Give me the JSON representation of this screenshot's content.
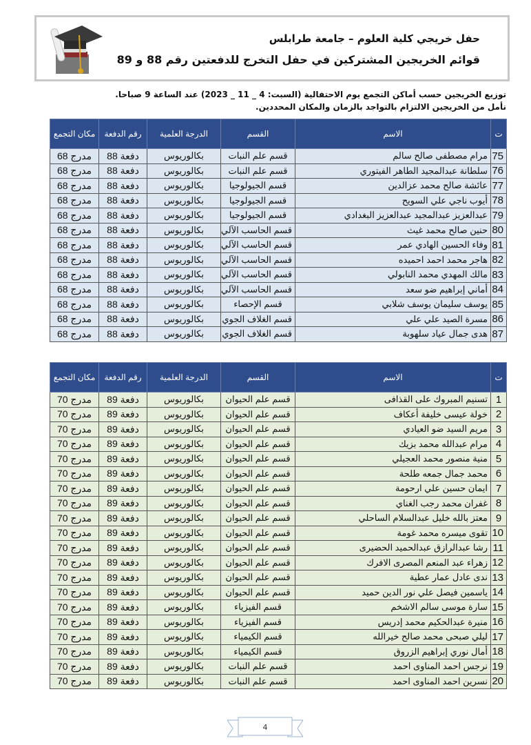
{
  "header": {
    "title": "حفل خريجي كلية العلوم – جامعة طرابلس",
    "subtitle": "قوائم الخريجين المشتركين في حفل التخرج للدفعتين رقم 88 و 89",
    "logo_icon": "graduation-cap-icon"
  },
  "notes": [
    "توزيع الخريجين حسب أماكن التجمع يوم الاحتفالية (السبت: 4 _ 11 _ 2023) عند الساعة 9 صباحا.",
    "نأمل من الخريجين الالتزام بالتواجد بالزمان والمكان المحددين."
  ],
  "columns": [
    "ت",
    "الاسم",
    "القسم",
    "الدرجة العلمية",
    "رقم الدفعة",
    "مكان التجمع"
  ],
  "colors": {
    "header": "#2f4c8c",
    "table1_row": "#dbe6f0",
    "table2_row": "#e5eedb"
  },
  "table1": [
    [
      "75",
      "مرام مصطفى صالح سالم",
      "قسم علم النبات",
      "بكالوريوس",
      "دفعة 88",
      "مدرج 68"
    ],
    [
      "76",
      "سلطانة عبدالمجيد الطاهر الفيتوري",
      "قسم علم النبات",
      "بكالوريوس",
      "دفعة 88",
      "مدرج 68"
    ],
    [
      "77",
      "عائشة صالح محمد عزالدين",
      "قسم الجيولوجيا",
      "بكالوريوس",
      "دفعة 88",
      "مدرج 68"
    ],
    [
      "78",
      "أيوب ناجي علي السويح",
      "قسم الجيولوجيا",
      "بكالوريوس",
      "دفعة 88",
      "مدرج 68"
    ],
    [
      "79",
      "عبدالعزيز عبدالمجيد عبدالعزيز البغدادي",
      "قسم الجيولوجيا",
      "بكالوريوس",
      "دفعة 88",
      "مدرج 68"
    ],
    [
      "80",
      "حنين صالح محمد غيث",
      "قسم الحاسب الآلي",
      "بكالوريوس",
      "دفعة 88",
      "مدرج 68"
    ],
    [
      "81",
      "وفاء الحسين الهادي عمر",
      "قسم الحاسب الآلي",
      "بكالوريوس",
      "دفعة 88",
      "مدرج 68"
    ],
    [
      "82",
      "هاجر محمد احمد احميده",
      "قسم الحاسب الآلي",
      "بكالوريوس",
      "دفعة 88",
      "مدرج 68"
    ],
    [
      "83",
      "مالك المهدي محمد النابولي",
      "قسم الحاسب الآلي",
      "بكالوريوس",
      "دفعة 88",
      "مدرج 68"
    ],
    [
      "84",
      "أماني إبراهيم ضو سعد",
      "قسم الحاسب الآلي",
      "بكالوريوس",
      "دفعة 88",
      "مدرج 68"
    ],
    [
      "85",
      "يوسف سليمان يوسف شلابي",
      "قسم الإحصاء",
      "بكالوريوس",
      "دفعة 88",
      "مدرج 68"
    ],
    [
      "86",
      "مسرة الصيد علي علي",
      "قسم الغلاف الجوي",
      "بكالوريوس",
      "دفعة 88",
      "مدرج 68"
    ],
    [
      "87",
      "هدى جمال عياد سلهوبة",
      "قسم الغلاف الجوي",
      "بكالوريوس",
      "دفعة 88",
      "مدرج 68"
    ]
  ],
  "table2": [
    [
      "1",
      "تسنيم المبروك على القذافى",
      "قسم علم الحيوان",
      "بكالوريوس",
      "دفعة 89",
      "مدرج 70"
    ],
    [
      "2",
      "خولة عيسى خليفة أعكاف",
      "قسم علم الحيوان",
      "بكالوريوس",
      "دفعة 89",
      "مدرج 70"
    ],
    [
      "3",
      "مريم السيد ضو العيادي",
      "قسم علم الحيوان",
      "بكالوريوس",
      "دفعة 89",
      "مدرج 70"
    ],
    [
      "4",
      "مرام عبدالله محمد بزيك",
      "قسم علم الحيوان",
      "بكالوريوس",
      "دفعة 89",
      "مدرج 70"
    ],
    [
      "5",
      "منية منصور محمد العجيلي",
      "قسم علم الحيوان",
      "بكالوريوس",
      "دفعة 89",
      "مدرج 70"
    ],
    [
      "6",
      "محمد جمال جمعه طلحة",
      "قسم علم الحيوان",
      "بكالوريوس",
      "دفعة 89",
      "مدرج 70"
    ],
    [
      "7",
      "ايمان حسين علي ارحومة",
      "قسم علم الحيوان",
      "بكالوريوس",
      "دفعة 89",
      "مدرج 70"
    ],
    [
      "8",
      "غفران محمد رجب الغناي",
      "قسم علم الحيوان",
      "بكالوريوس",
      "دفعة 89",
      "مدرج 70"
    ],
    [
      "9",
      "معتز بالله خليل عبدالسلام الساحلي",
      "قسم علم الحيوان",
      "بكالوريوس",
      "دفعة 89",
      "مدرج 70"
    ],
    [
      "10",
      "تقوى ميسره محمد غومة",
      "قسم علم الحيوان",
      "بكالوريوس",
      "دفعة 89",
      "مدرج 70"
    ],
    [
      "11",
      "رشا عبدالرازق عبدالحميد الحضيرى",
      "قسم علم الحيوان",
      "بكالوريوس",
      "دفعة 89",
      "مدرج 70"
    ],
    [
      "12",
      "زهراء عبد المنعم المصرى الافرك",
      "قسم علم الحيوان",
      "بكالوريوس",
      "دفعة 89",
      "مدرج 70"
    ],
    [
      "13",
      "ندى عادل عمار عطية",
      "قسم علم الحيوان",
      "بكالوريوس",
      "دفعة 89",
      "مدرج 70"
    ],
    [
      "14",
      "ياسمين فيصل علي نور الدين حميد",
      "قسم علم الحيوان",
      "بكالوريوس",
      "دفعة 89",
      "مدرج 70"
    ],
    [
      "15",
      "سارة موسى سالم الاشخم",
      "قسم الفيزياء",
      "بكالوريوس",
      "دفعة 89",
      "مدرج 70"
    ],
    [
      "16",
      "منيرة عبدالحكيم محمد إدريس",
      "قسم الفيزياء",
      "بكالوريوس",
      "دفعة 89",
      "مدرج 70"
    ],
    [
      "17",
      "ليلي صبحى محمد صالح خيرالله",
      "قسم الكيمياء",
      "بكالوريوس",
      "دفعة 89",
      "مدرج 70"
    ],
    [
      "18",
      "أمال نوري إبراهيم الزروق",
      "قسم الكيمياء",
      "بكالوريوس",
      "دفعة 89",
      "مدرج 70"
    ],
    [
      "19",
      "نرجس احمد المناوى احمد",
      "قسم علم النبات",
      "بكالوريوس",
      "دفعة 89",
      "مدرج 70"
    ],
    [
      "20",
      "نسرين احمد المناوى احمد",
      "قسم علم النبات",
      "بكالوريوس",
      "دفعة 89",
      "مدرج 70"
    ]
  ],
  "footer": {
    "page_number": "4"
  }
}
